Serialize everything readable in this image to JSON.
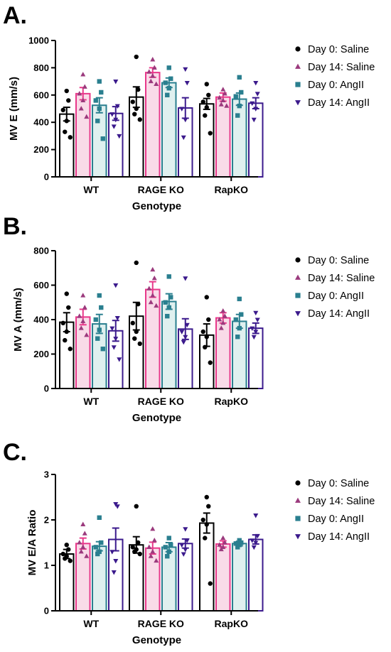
{
  "legend": {
    "entries": [
      "Day 0: Saline",
      "Day 14: Saline",
      "Day 0: AngII",
      "Day 14: AngII"
    ]
  },
  "colors": {
    "series": [
      "#000000",
      "#e8388a",
      "#2a7f8f",
      "#3b1a8c"
    ],
    "fills": [
      "#ffffff",
      "#f9dbe8",
      "#dff0ef",
      "#ffffff"
    ],
    "markers": [
      "#000000",
      "#9b3a7d",
      "#2a7f8f",
      "#3b1a8c"
    ]
  },
  "chart_data": [
    {
      "panel": "A.",
      "type": "bar",
      "categories": [
        "WT",
        "RAGE KO",
        "RapKO"
      ],
      "xlabel": "Genotype",
      "ylabel": "MV E (mm/s)",
      "ylim": [
        0,
        1000
      ],
      "yticks": [
        0,
        200,
        400,
        600,
        800,
        1000
      ],
      "legend_position": "right",
      "series": [
        {
          "name": "Day 0: Saline",
          "marker": "circle",
          "values": [
            460,
            585,
            535
          ],
          "errors": [
            50,
            75,
            40
          ],
          "points": [
            [
              630,
              560,
              490,
              410,
              330,
              290
            ],
            [
              880,
              640,
              550,
              500,
              460,
              420
            ],
            [
              680,
              600,
              550,
              510,
              450,
              320
            ]
          ]
        },
        {
          "name": "Day 14: Saline",
          "marker": "triangle",
          "values": [
            610,
            765,
            585
          ],
          "errors": [
            45,
            35,
            30
          ],
          "points": [
            [
              750,
              660,
              610,
              560,
              500,
              440
            ],
            [
              860,
              800,
              770,
              740,
              700,
              680
            ],
            [
              640,
              610,
              580,
              560,
              530,
              520
            ]
          ]
        },
        {
          "name": "Day 0: AngII",
          "marker": "square",
          "values": [
            525,
            690,
            570
          ],
          "errors": [
            55,
            35,
            45
          ],
          "points": [
            [
              700,
              620,
              560,
              500,
              410,
              280
            ],
            [
              800,
              720,
              690,
              650,
              600
            ],
            [
              730,
              620,
              590,
              520,
              450
            ]
          ]
        },
        {
          "name": "Day 14: AngII",
          "marker": "triangle-down",
          "values": [
            465,
            505,
            540
          ],
          "errors": [
            50,
            75,
            40
          ],
          "points": [
            [
              700,
              520,
              460,
              420,
              370,
              300
            ],
            [
              790,
              690,
              500,
              420,
              290
            ],
            [
              690,
              610,
              540,
              500,
              420
            ]
          ]
        }
      ]
    },
    {
      "panel": "B.",
      "type": "bar",
      "categories": [
        "WT",
        "RAGE KO",
        "RapKO"
      ],
      "xlabel": "Genotype",
      "ylabel": "MV A (mm/s)",
      "ylim": [
        0,
        800
      ],
      "yticks": [
        0,
        200,
        400,
        600,
        800
      ],
      "legend_position": "right",
      "series": [
        {
          "name": "Day 0: Saline",
          "marker": "circle",
          "values": [
            385,
            420,
            310
          ],
          "errors": [
            55,
            80,
            65
          ],
          "points": [
            [
              550,
              470,
              380,
              330,
              280,
              230
            ],
            [
              730,
              490,
              380,
              330,
              290,
              260
            ],
            [
              530,
              400,
              330,
              300,
              240,
              150
            ]
          ]
        },
        {
          "name": "Day 14: Saline",
          "marker": "triangle",
          "values": [
            415,
            575,
            410
          ],
          "errors": [
            45,
            45,
            30
          ],
          "points": [
            [
              540,
              470,
              420,
              390,
              350,
              310
            ],
            [
              690,
              640,
              580,
              540,
              500,
              480
            ],
            [
              450,
              420,
              400,
              380,
              350
            ]
          ]
        },
        {
          "name": "Day 0: AngII",
          "marker": "square",
          "values": [
            375,
            505,
            390
          ],
          "errors": [
            55,
            45,
            40
          ],
          "points": [
            [
              540,
              470,
              400,
              340,
              290,
              230
            ],
            [
              650,
              530,
              500,
              470,
              420
            ],
            [
              520,
              430,
              400,
              350,
              300
            ]
          ]
        },
        {
          "name": "Day 14: AngII",
          "marker": "triangle-down",
          "values": [
            335,
            345,
            350
          ],
          "errors": [
            60,
            60,
            30
          ],
          "points": [
            [
              600,
              410,
              350,
              290,
              240,
              170
            ],
            [
              640,
              370,
              330,
              300,
              270
            ],
            [
              440,
              400,
              350,
              330,
              300
            ]
          ]
        }
      ]
    },
    {
      "panel": "C.",
      "type": "bar",
      "categories": [
        "WT",
        "RAGE KO",
        "RapKO"
      ],
      "xlabel": "Genotype",
      "ylabel": "MV E/A Ratio",
      "ylim": [
        0,
        3
      ],
      "yticks": [
        0,
        1,
        2,
        3
      ],
      "legend_position": "right",
      "series": [
        {
          "name": "Day 0: Saline",
          "marker": "circle",
          "values": [
            1.25,
            1.45,
            1.93
          ],
          "errors": [
            0.1,
            0.18,
            0.22
          ],
          "points": [
            [
              1.45,
              1.35,
              1.25,
              1.2,
              1.15,
              1.1
            ],
            [
              2.3,
              1.5,
              1.4,
              1.35,
              1.3,
              1.25
            ],
            [
              2.5,
              2.3,
              2.0,
              1.9,
              1.6,
              0.6
            ]
          ]
        },
        {
          "name": "Day 14: Saline",
          "marker": "triangle",
          "values": [
            1.48,
            1.38,
            1.47
          ],
          "errors": [
            0.12,
            0.13,
            0.07
          ],
          "points": [
            [
              1.9,
              1.7,
              1.5,
              1.4,
              1.3,
              1.2
            ],
            [
              1.8,
              1.55,
              1.4,
              1.3,
              1.2,
              1.1
            ],
            [
              1.6,
              1.5,
              1.45,
              1.4,
              1.35
            ]
          ]
        },
        {
          "name": "Day 0: AngII",
          "marker": "square",
          "values": [
            1.42,
            1.4,
            1.48
          ],
          "errors": [
            0.1,
            0.1,
            0.05
          ],
          "points": [
            [
              2.05,
              1.5,
              1.4,
              1.3,
              1.25
            ],
            [
              1.6,
              1.45,
              1.4,
              1.3,
              1.2
            ],
            [
              1.55,
              1.5,
              1.48,
              1.45,
              1.4
            ]
          ]
        },
        {
          "name": "Day 14: AngII",
          "marker": "triangle-down",
          "values": [
            1.57,
            1.48,
            1.57
          ],
          "errors": [
            0.25,
            0.1,
            0.1
          ],
          "points": [
            [
              2.35,
              2.3,
              1.3,
              1.1,
              0.85
            ],
            [
              1.8,
              1.55,
              1.45,
              1.35,
              1.25
            ],
            [
              2.1,
              1.65,
              1.55,
              1.5,
              1.4
            ]
          ]
        }
      ]
    }
  ]
}
